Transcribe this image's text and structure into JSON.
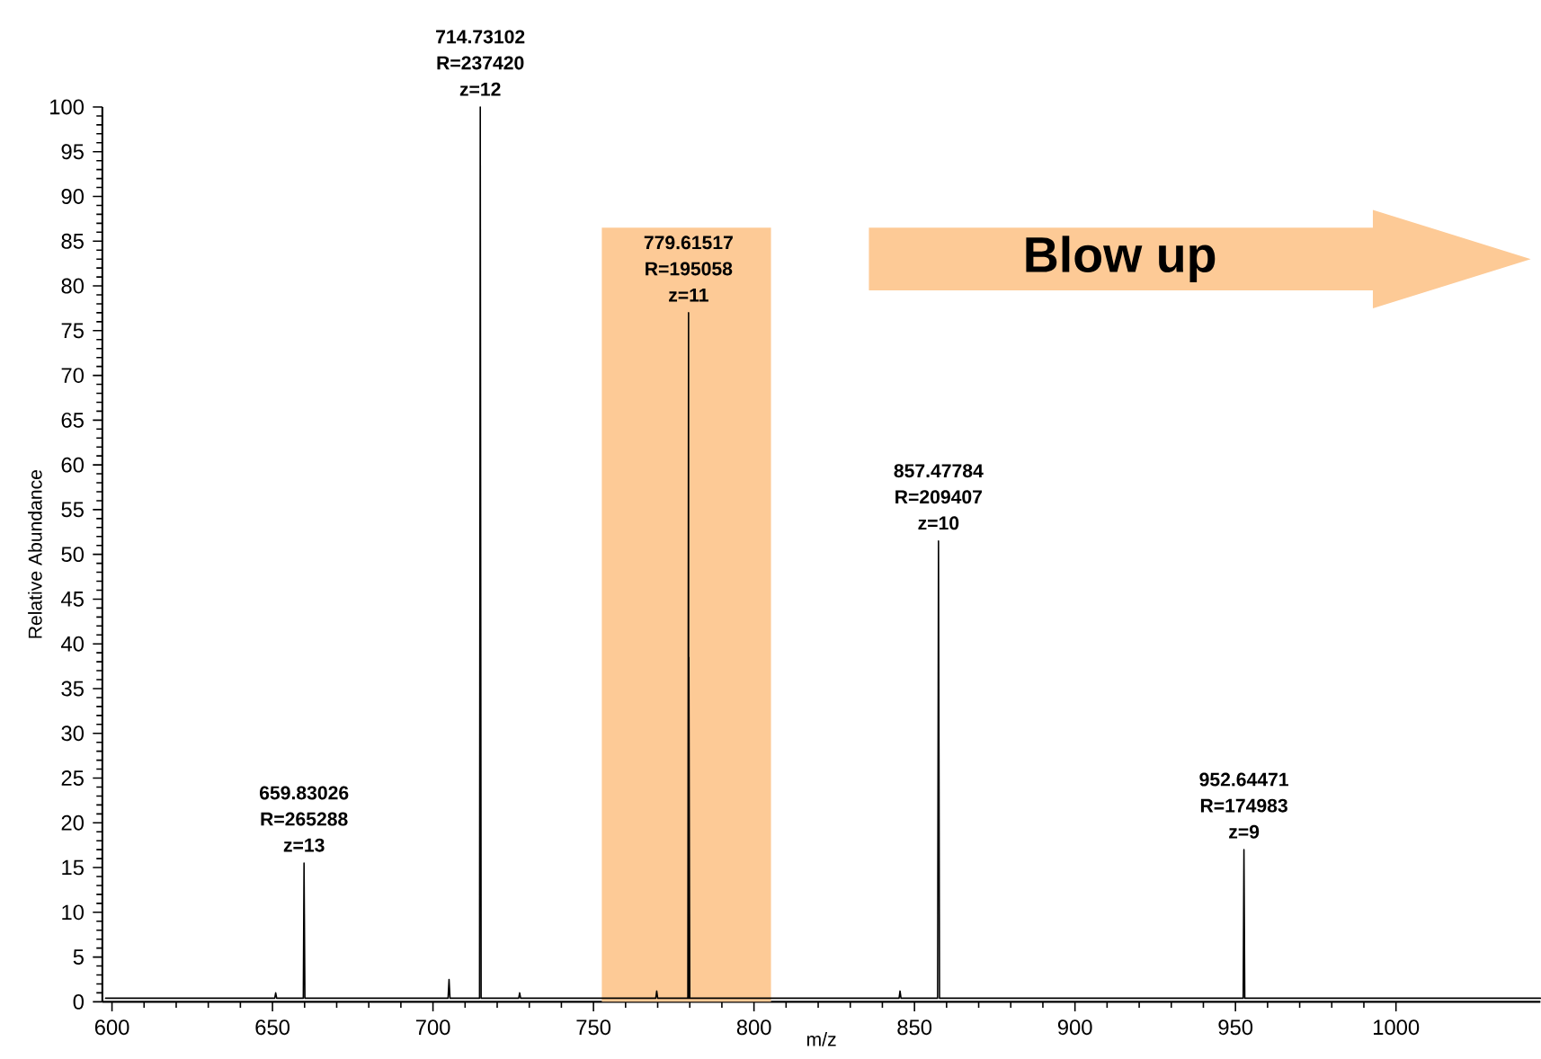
{
  "chart_data": {
    "type": "line",
    "xlabel": "m/z",
    "ylabel": "Relative Abundance",
    "color": "#000000",
    "x": [
      598,
      650.7,
      651,
      651.3,
      659.6,
      659.83,
      660.1,
      704.7,
      705,
      705.3,
      714.5,
      714.73,
      715,
      726.7,
      727,
      727.3,
      769.4,
      769.7,
      770,
      779.4,
      779.62,
      779.67,
      779.71,
      780,
      845.2,
      845.5,
      845.8,
      857.2,
      857.48,
      857.8,
      952.4,
      952.64,
      952.9,
      1045
    ],
    "values": [
      0.4,
      0.4,
      1.0,
      0.4,
      0.4,
      15.5,
      0.4,
      0.4,
      2.5,
      0.4,
      0.4,
      100,
      0.4,
      0.4,
      1.0,
      0.4,
      0.4,
      1.2,
      0.4,
      0.4,
      77,
      0.4,
      38.5,
      0.4,
      0.4,
      1.2,
      0.4,
      0.4,
      51.5,
      0.4,
      0.4,
      17,
      0.4,
      0.4
    ],
    "xlim": [
      597,
      1045
    ],
    "ylim": [
      0,
      100
    ],
    "xticks": [
      600,
      650,
      700,
      750,
      800,
      850,
      900,
      950,
      1000
    ],
    "yticks": [
      0,
      5,
      10,
      15,
      20,
      25,
      30,
      35,
      40,
      45,
      50,
      55,
      60,
      65,
      70,
      75,
      80,
      85,
      90,
      95,
      100
    ],
    "bands": [
      {
        "axis": "x",
        "from": 752.6,
        "to": 805.3,
        "color": "#fdca96"
      }
    ],
    "annotations": [
      "659.83026",
      "R=265288",
      {
        "text": "z=13",
        "x": 659.83,
        "y": 15.5
      },
      "714.73102",
      "R=237420",
      {
        "text": "z=12",
        "x": 714.73,
        "y": 100
      },
      "779.61517",
      "R=195058",
      {
        "text": "z=11",
        "x": 779.62,
        "y": 77
      },
      "857.47784",
      "R=209407",
      {
        "text": "z=10",
        "x": 857.48,
        "y": 51.5
      },
      "952.64471",
      "R=174983",
      {
        "text": "z=9",
        "x": 952.64,
        "y": 17
      },
      "Blow up"
    ]
  }
}
